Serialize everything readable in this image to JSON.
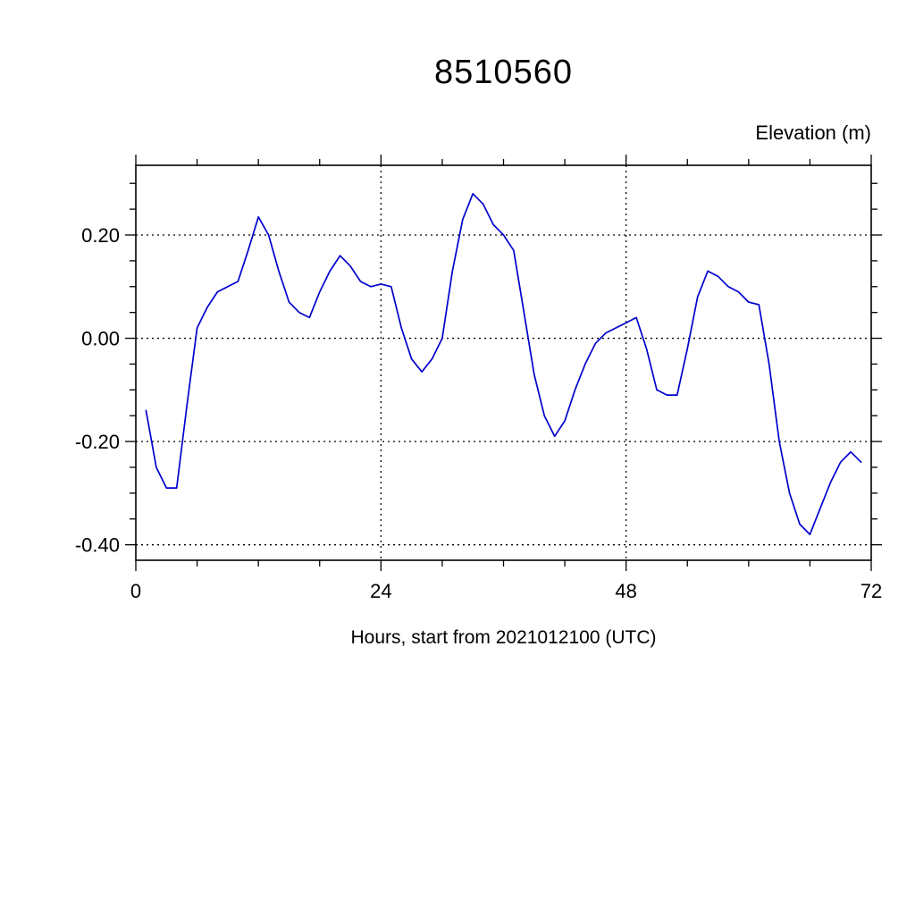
{
  "page": {
    "background": "#ffffff"
  },
  "chart_data": {
    "type": "line",
    "title": "8510560",
    "ylabel": "Elevation (m)",
    "xlabel": "Hours, start from 2021012100 (UTC)",
    "xlim": [
      0,
      72
    ],
    "ylim": [
      -0.43,
      0.335
    ],
    "xticks": {
      "values": [
        0,
        24,
        48,
        72
      ],
      "labels": [
        "0",
        "24",
        "48",
        "72"
      ]
    },
    "yticks": {
      "values": [
        0.2,
        0.0,
        -0.2,
        -0.4
      ],
      "labels": [
        "0.20",
        "0.00",
        "-0.20",
        "-0.40"
      ]
    },
    "x_minor_step": 6,
    "y_minor_step": 0.05,
    "grid": "dashed lines at major ticks",
    "legend": "none",
    "frame_color": "#000000",
    "series": [
      {
        "name": "elevation",
        "color": "#0000cd",
        "x_start": 1,
        "x_step": 1,
        "values": [
          -0.14,
          -0.25,
          -0.29,
          -0.29,
          -0.13,
          0.02,
          0.06,
          0.09,
          0.1,
          0.11,
          0.17,
          0.235,
          0.2,
          0.13,
          0.07,
          0.05,
          0.04,
          0.09,
          0.13,
          0.16,
          0.14,
          0.11,
          0.1,
          0.105,
          0.1,
          0.02,
          -0.04,
          -0.065,
          -0.04,
          0.0,
          0.13,
          0.23,
          0.28,
          0.26,
          0.22,
          0.2,
          0.17,
          0.05,
          -0.07,
          -0.15,
          -0.19,
          -0.16,
          -0.1,
          -0.05,
          -0.01,
          0.01,
          0.02,
          0.03,
          0.04,
          -0.02,
          -0.1,
          -0.11,
          -0.11,
          -0.02,
          0.08,
          0.13,
          0.12,
          0.1,
          0.09,
          0.07,
          0.065,
          -0.05,
          -0.2,
          -0.3,
          -0.36,
          -0.38,
          -0.33,
          -0.28,
          -0.24,
          -0.22,
          -0.24
        ]
      }
    ]
  }
}
